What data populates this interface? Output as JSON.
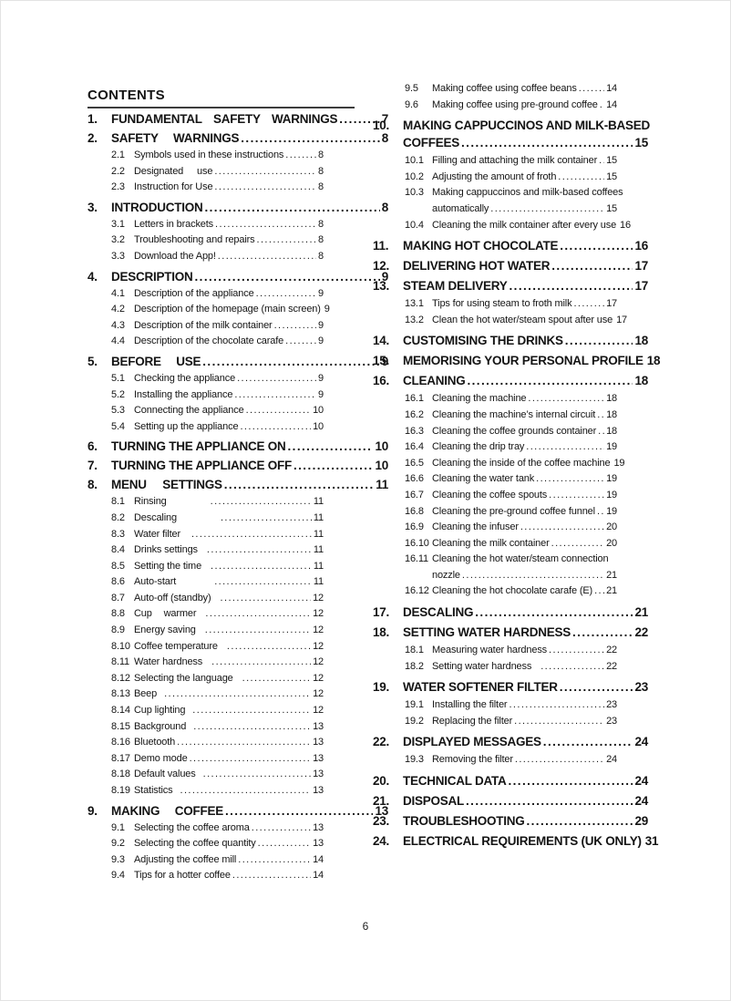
{
  "document": {
    "title": "CONTENTS",
    "footer_page_number": "6"
  },
  "toc": {
    "left": [
      {
        "t": "h",
        "n": "1.",
        "title": "FUNDAMENTAL SAFETY WARNINGS",
        "page": "7",
        "ws": 9
      },
      {
        "t": "h",
        "n": "2.",
        "title": "SAFETY WARNINGS",
        "page": "8",
        "ws": 13
      },
      {
        "t": "s",
        "n": "2.1",
        "title": "Symbols used in these instructions",
        "page": "8"
      },
      {
        "t": "s",
        "n": "2.2",
        "title": "Designated use",
        "page": "8",
        "ws": 12
      },
      {
        "t": "s",
        "n": "2.3",
        "title": "Instruction for Use",
        "page": "8"
      },
      {
        "t": "h",
        "n": "3.",
        "title": "INTRODUCTION",
        "page": "8"
      },
      {
        "t": "s",
        "n": "3.1",
        "title": "Letters in brackets",
        "page": "8"
      },
      {
        "t": "s",
        "n": "3.2",
        "title": "Troubleshooting and repairs",
        "page": "8"
      },
      {
        "t": "s",
        "n": "3.3",
        "title": "Download the App!",
        "page": "8"
      },
      {
        "t": "h",
        "n": "4.",
        "title": "DESCRIPTION",
        "page": "9"
      },
      {
        "t": "s",
        "n": "4.1",
        "title": "Description of the appliance",
        "page": "9"
      },
      {
        "t": "s",
        "n": "4.2",
        "title": "Description of the homepage (main screen)",
        "page": "9",
        "dots": false
      },
      {
        "t": "s",
        "n": "4.3",
        "title": "Description of the milk container",
        "page": "9"
      },
      {
        "t": "s",
        "n": "4.4",
        "title": "Description of the chocolate carafe",
        "page": "9"
      },
      {
        "t": "h",
        "n": "5.",
        "title": "BEFORE USE",
        "page": "9",
        "ws": 13
      },
      {
        "t": "s",
        "n": "5.1",
        "title": "Checking the appliance",
        "page": "9"
      },
      {
        "t": "s",
        "n": "5.2",
        "title": "Installing the appliance",
        "page": "9"
      },
      {
        "t": "s",
        "n": "5.3",
        "title": "Connecting the appliance",
        "page": "10"
      },
      {
        "t": "s",
        "n": "5.4",
        "title": "Setting up the appliance",
        "page": "10"
      },
      {
        "t": "h",
        "n": "6.",
        "title": "TURNING THE APPLIANCE ON",
        "page": "10"
      },
      {
        "t": "h",
        "n": "7.",
        "title": "TURNING THE APPLIANCE OFF",
        "page": "10"
      },
      {
        "t": "h",
        "n": "8.",
        "title": "MENU SETTINGS",
        "page": "11",
        "ws": 14
      },
      {
        "t": "s",
        "n": "8.1",
        "title": "Rinsing",
        "page": "11",
        "gap": 46
      },
      {
        "t": "s",
        "n": "8.2",
        "title": "Descaling",
        "page": "11",
        "gap": 46
      },
      {
        "t": "s",
        "n": "8.3",
        "title": "Water filter",
        "page": "11",
        "gap": 10
      },
      {
        "t": "s",
        "n": "8.4",
        "title": "Drinks settings",
        "page": "11",
        "gap": 8
      },
      {
        "t": "s",
        "n": "8.5",
        "title": "Setting the time",
        "page": "11",
        "gap": 8
      },
      {
        "t": "s",
        "n": "8.6",
        "title": "Auto-start",
        "page": "11",
        "gap": 40
      },
      {
        "t": "s",
        "n": "8.7",
        "title": "Auto-off (standby)",
        "page": "12",
        "gap": 8
      },
      {
        "t": "s",
        "n": "8.8",
        "title": "Cup warmer",
        "page": "12",
        "ws": 10,
        "gap": 8
      },
      {
        "t": "s",
        "n": "8.9",
        "title": "Energy saving",
        "page": "12",
        "gap": 8
      },
      {
        "t": "s",
        "n": "8.10",
        "title": "Coffee temperature",
        "page": "12",
        "gap": 8
      },
      {
        "t": "s",
        "n": "8.11",
        "title": "Water hardness",
        "page": "12",
        "gap": 8
      },
      {
        "t": "s",
        "n": "8.12",
        "title": "Selecting the language",
        "page": "12",
        "gap": 8
      },
      {
        "t": "s",
        "n": "8.13",
        "title": "Beep",
        "page": "12",
        "gap": 6
      },
      {
        "t": "s",
        "n": "8.14",
        "title": "Cup lighting",
        "page": "12",
        "gap": 6
      },
      {
        "t": "s",
        "n": "8.15",
        "title": "Background",
        "page": "13",
        "gap": 6
      },
      {
        "t": "s",
        "n": "8.16",
        "title": "Bluetooth",
        "page": "13"
      },
      {
        "t": "s",
        "n": "8.17",
        "title": "Demo mode",
        "page": "13"
      },
      {
        "t": "s",
        "n": "8.18",
        "title": "Default values",
        "page": "13",
        "gap": 6
      },
      {
        "t": "s",
        "n": "8.19",
        "title": "Statistics",
        "page": "13",
        "gap": 6
      },
      {
        "t": "h",
        "n": "9.",
        "title": "MAKING COFFEE",
        "page": "13",
        "ws": 13
      },
      {
        "t": "s",
        "n": "9.1",
        "title": "Selecting the coffee aroma",
        "page": "13"
      },
      {
        "t": "s",
        "n": "9.2",
        "title": "Selecting the coffee quantity",
        "page": "13"
      },
      {
        "t": "s",
        "n": "9.3",
        "title": "Adjusting the coffee mill",
        "page": "14"
      },
      {
        "t": "s",
        "n": "9.4",
        "title": "Tips for a hotter coffee",
        "page": "14"
      }
    ],
    "right": [
      {
        "t": "s",
        "n": "9.5",
        "title": "Making coffee using coffee beans",
        "page": "14"
      },
      {
        "t": "s",
        "n": "9.6",
        "title": "Making coffee using pre-ground coffee",
        "page": "14"
      },
      {
        "t": "h",
        "n": "10.",
        "title": "MAKING CAPPUCCINOS AND MILK-BASED",
        "title2": "COFFEES",
        "page": "15"
      },
      {
        "t": "s",
        "n": "10.1",
        "title": "Filling and attaching the milk container",
        "page": "15"
      },
      {
        "t": "s",
        "n": "10.2",
        "title": "Adjusting the amount of froth",
        "page": "15"
      },
      {
        "t": "s",
        "n": "10.3",
        "title": "Making cappuccinos and milk-based coffees",
        "title2": "automatically",
        "page": "15"
      },
      {
        "t": "s",
        "n": "10.4",
        "title": "Cleaning the milk container after every use",
        "page": "16",
        "dots": false
      },
      {
        "t": "h",
        "n": "11.",
        "title": "MAKING HOT CHOCOLATE",
        "page": "16"
      },
      {
        "t": "h",
        "n": "12.",
        "title": "DELIVERING HOT WATER",
        "page": "17"
      },
      {
        "t": "h",
        "n": "13.",
        "title": "STEAM DELIVERY",
        "page": "17"
      },
      {
        "t": "s",
        "n": "13.1",
        "title": "Tips for using steam to froth milk",
        "page": "17"
      },
      {
        "t": "s",
        "n": "13.2",
        "title": "Clean the hot water/steam spout after use",
        "page": "17"
      },
      {
        "t": "h",
        "n": "14.",
        "title": "CUSTOMISING THE DRINKS",
        "page": "18"
      },
      {
        "t": "h",
        "n": "15.",
        "title": "MEMORISING YOUR PERSONAL PROFILE",
        "page": "18"
      },
      {
        "t": "h",
        "n": "16.",
        "title": "CLEANING",
        "page": "18"
      },
      {
        "t": "s",
        "n": "16.1",
        "title": "Cleaning the machine",
        "page": "18"
      },
      {
        "t": "s",
        "n": "16.2",
        "title": "Cleaning the machine’s internal circuit",
        "page": "18"
      },
      {
        "t": "s",
        "n": "16.3",
        "title": "Cleaning the coffee grounds container",
        "page": "18"
      },
      {
        "t": "s",
        "n": "16.4",
        "title": "Cleaning the drip tray",
        "page": "19"
      },
      {
        "t": "s",
        "n": "16.5",
        "title": "Cleaning the inside of the coffee machine",
        "page": "19"
      },
      {
        "t": "s",
        "n": "16.6",
        "title": "Cleaning the water tank",
        "page": "19"
      },
      {
        "t": "s",
        "n": "16.7",
        "title": "Cleaning the coffee spouts",
        "page": "19"
      },
      {
        "t": "s",
        "n": "16.8",
        "title": "Cleaning the pre-ground coffee funnel",
        "page": "19"
      },
      {
        "t": "s",
        "n": "16.9",
        "title": "Cleaning the infuser",
        "page": "20"
      },
      {
        "t": "s",
        "n": "16.10",
        "title": "Cleaning the milk container",
        "page": "20"
      },
      {
        "t": "s",
        "n": "16.11",
        "title": "Cleaning the hot water/steam connection",
        "title2": "nozzle",
        "page": "21"
      },
      {
        "t": "s",
        "n": "16.12",
        "title": "Cleaning the hot chocolate carafe (E)",
        "page": "21"
      },
      {
        "t": "h",
        "n": "17.",
        "title": "DESCALING",
        "page": "21"
      },
      {
        "t": "h",
        "n": "18.",
        "title": "SETTING WATER HARDNESS",
        "page": "22"
      },
      {
        "t": "s",
        "n": "18.1",
        "title": "Measuring water hardness",
        "page": "22"
      },
      {
        "t": "s",
        "n": "18.2",
        "title": "Setting water hardness",
        "page": "22",
        "gap": 8
      },
      {
        "t": "h",
        "n": "19.",
        "title": "WATER SOFTENER FILTER",
        "page": "23"
      },
      {
        "t": "s",
        "n": "19.1",
        "title": "Installing the filter",
        "page": "23"
      },
      {
        "t": "s",
        "n": "19.2",
        "title": "Replacing the filter",
        "page": "23"
      },
      {
        "t": "h",
        "n": "22.",
        "title": "DISPLAYED MESSAGES",
        "page": "24"
      },
      {
        "t": "s",
        "n": "19.3",
        "title": "Removing the filter",
        "page": "24"
      },
      {
        "t": "h",
        "n": "20.",
        "title": "TECHNICAL DATA",
        "page": "24"
      },
      {
        "t": "h",
        "n": "21.",
        "title": "DISPOSAL",
        "page": "24"
      },
      {
        "t": "h",
        "n": "23.",
        "title": "TROUBLESHOOTING",
        "page": "29"
      },
      {
        "t": "h",
        "n": "24.",
        "title": "ELECTRICAL REQUIREMENTS (UK ONLY)",
        "page": "31"
      }
    ]
  }
}
